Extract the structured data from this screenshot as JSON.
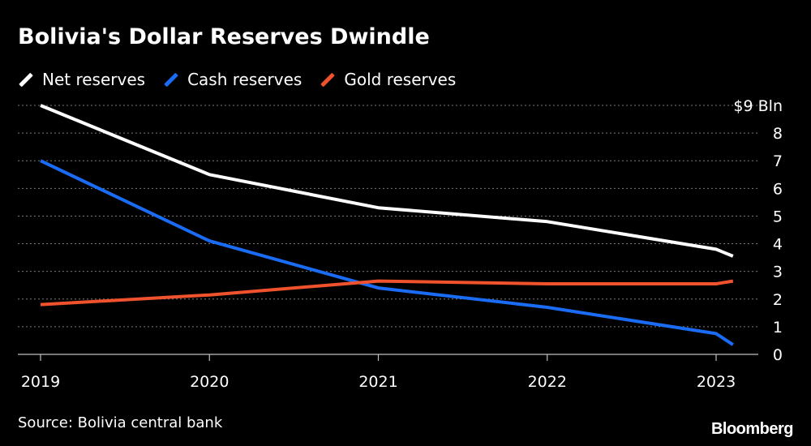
{
  "colors": {
    "background": "#000000",
    "text": "#ffffff",
    "grid": "#7a7a7a",
    "net": "#ffffff",
    "cash": "#1a6cf5",
    "gold": "#f0522d"
  },
  "source": "Source: Bolivia central bank",
  "brand": "Bloomberg",
  "chart_data": {
    "type": "line",
    "title": "Bolivia's Dollar Reserves Dwindle",
    "xlabel": "",
    "ylabel": "",
    "ylim": [
      0,
      9
    ],
    "xlim": [
      2019,
      2023.1
    ],
    "yticks": [
      0,
      1,
      2,
      3,
      4,
      5,
      6,
      7,
      8,
      9
    ],
    "ytick_labels": [
      "0",
      "1",
      "2",
      "3",
      "4",
      "5",
      "6",
      "7",
      "8",
      "$9 Bln"
    ],
    "xticks": [
      2019,
      2020,
      2021,
      2022,
      2023
    ],
    "xtick_labels": [
      "2019",
      "2020",
      "2021",
      "2022",
      "2023"
    ],
    "grid": true,
    "legend_position": "top-left",
    "series": [
      {
        "name": "Net reserves",
        "color": "#ffffff",
        "points": [
          [
            2019,
            9.0
          ],
          [
            2020,
            6.5
          ],
          [
            2021,
            5.3
          ],
          [
            2022,
            4.8
          ],
          [
            2023,
            3.8
          ],
          [
            2023.1,
            3.55
          ]
        ]
      },
      {
        "name": "Cash reserves",
        "color": "#1a6cf5",
        "points": [
          [
            2019,
            7.0
          ],
          [
            2020,
            4.1
          ],
          [
            2021,
            2.4
          ],
          [
            2022,
            1.7
          ],
          [
            2023,
            0.75
          ],
          [
            2023.1,
            0.35
          ]
        ]
      },
      {
        "name": "Gold reserves",
        "color": "#f0522d",
        "points": [
          [
            2019,
            1.8
          ],
          [
            2020,
            2.15
          ],
          [
            2021,
            2.65
          ],
          [
            2022,
            2.55
          ],
          [
            2023,
            2.55
          ],
          [
            2023.1,
            2.65
          ]
        ]
      }
    ]
  }
}
